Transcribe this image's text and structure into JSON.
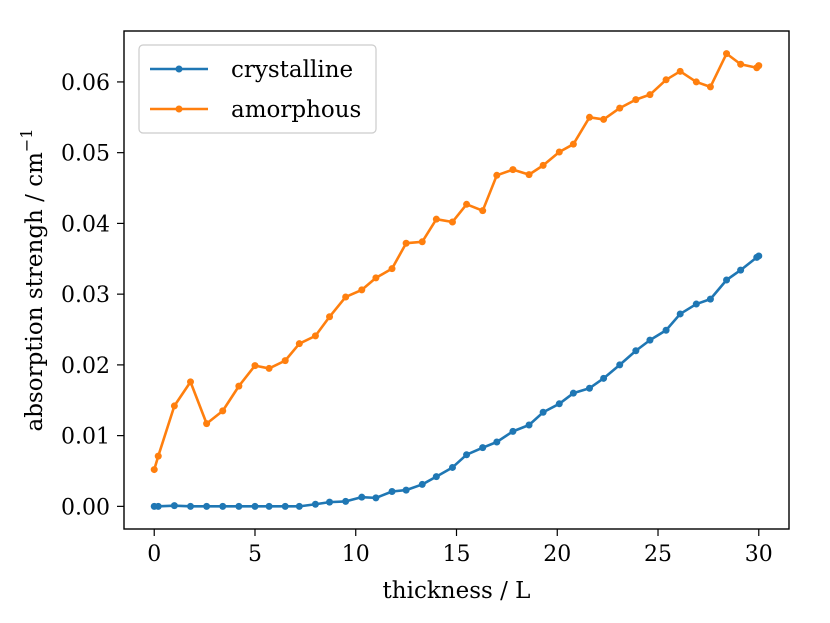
{
  "chart_data": {
    "type": "line",
    "title": "",
    "xlabel": "thickness / L",
    "ylabel": "absorption strengh / cm",
    "ylabel_exponent": "−1",
    "xlim": [
      -1.5,
      31.5
    ],
    "ylim": [
      -0.0032,
      0.0672
    ],
    "xticks": [
      0,
      5,
      10,
      15,
      20,
      25,
      30
    ],
    "yticks": [
      0.0,
      0.01,
      0.02,
      0.03,
      0.04,
      0.05,
      0.06
    ],
    "ytick_labels": [
      "0.00",
      "0.01",
      "0.02",
      "0.03",
      "0.04",
      "0.05",
      "0.06"
    ],
    "xtick_labels": [
      "0",
      "5",
      "10",
      "15",
      "20",
      "25",
      "30"
    ],
    "legend_position": "top-left",
    "grid": false,
    "series": [
      {
        "name": "crystalline",
        "color": "#1f77b4",
        "x": [
          0,
          0.2,
          1.0,
          1.8,
          2.6,
          3.4,
          4.2,
          5.0,
          5.7,
          6.5,
          7.2,
          8.0,
          8.7,
          9.5,
          10.3,
          11.0,
          11.8,
          12.5,
          13.3,
          14.0,
          14.8,
          15.5,
          16.3,
          17.0,
          17.8,
          18.6,
          19.3,
          20.1,
          20.8,
          21.6,
          22.3,
          23.1,
          23.9,
          24.6,
          25.4,
          26.1,
          26.9,
          27.6,
          28.4,
          29.1,
          29.9,
          30.0
        ],
        "y": [
          0.0,
          0.0,
          0.0001,
          0.0,
          0.0,
          0.0,
          0.0,
          0.0,
          0.0,
          0.0,
          0.0,
          0.0003,
          0.0006,
          0.0007,
          0.0013,
          0.0012,
          0.0021,
          0.0023,
          0.0031,
          0.0042,
          0.0055,
          0.0073,
          0.0083,
          0.0091,
          0.0106,
          0.0115,
          0.0133,
          0.0145,
          0.016,
          0.0167,
          0.0181,
          0.02,
          0.022,
          0.0235,
          0.0249,
          0.0272,
          0.0286,
          0.0293,
          0.032,
          0.0334,
          0.0352,
          0.0354
        ]
      },
      {
        "name": "amorphous",
        "color": "#ff7f0e",
        "x": [
          0,
          0.2,
          1.0,
          1.8,
          2.6,
          3.4,
          4.2,
          5.0,
          5.7,
          6.5,
          7.2,
          8.0,
          8.7,
          9.5,
          10.3,
          11.0,
          11.8,
          12.5,
          13.3,
          14.0,
          14.8,
          15.5,
          16.3,
          17.0,
          17.8,
          18.6,
          19.3,
          20.1,
          20.8,
          21.6,
          22.3,
          23.1,
          23.9,
          24.6,
          25.4,
          26.1,
          26.9,
          27.6,
          28.4,
          29.1,
          29.9,
          30.0
        ],
        "y": [
          0.0052,
          0.0071,
          0.0142,
          0.0176,
          0.0117,
          0.0135,
          0.017,
          0.0199,
          0.0195,
          0.0206,
          0.023,
          0.0241,
          0.0268,
          0.0296,
          0.0306,
          0.0323,
          0.0336,
          0.0372,
          0.0374,
          0.0406,
          0.0402,
          0.0427,
          0.0418,
          0.0468,
          0.0476,
          0.0469,
          0.0482,
          0.0501,
          0.0512,
          0.055,
          0.0547,
          0.0563,
          0.0575,
          0.0582,
          0.0603,
          0.0615,
          0.06,
          0.0593,
          0.064,
          0.0625,
          0.062,
          0.0623
        ]
      }
    ]
  }
}
